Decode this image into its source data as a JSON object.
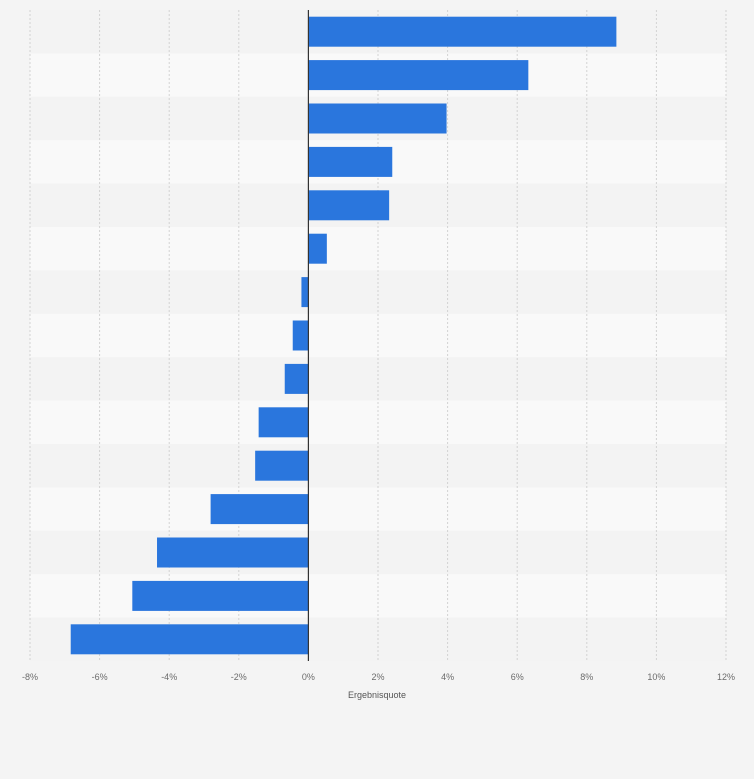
{
  "chart_data": {
    "type": "bar",
    "orientation": "horizontal",
    "title": "",
    "xlabel": "Ergebnisquote",
    "ylabel": "",
    "xlim": [
      -8,
      12
    ],
    "xticks": [
      -8,
      -6,
      -4,
      -2,
      0,
      2,
      4,
      6,
      8,
      10,
      12
    ],
    "tick_labels": [
      "-8%",
      "-6%",
      "-4%",
      "-2%",
      "0%",
      "2%",
      "4%",
      "6%",
      "8%",
      "10%",
      "12%"
    ],
    "grid": true,
    "values": [
      8.85,
      6.32,
      3.97,
      2.41,
      2.32,
      0.53,
      -0.2,
      -0.45,
      -0.68,
      -1.43,
      -1.53,
      -2.81,
      -4.35,
      -5.06,
      -6.83
    ],
    "colors": {
      "bar": "#2a76dd",
      "band_light": "#f9f9f9",
      "band_dark": "#f3f3f3",
      "grid": "#d2d2d2",
      "axis": "#333333"
    }
  }
}
